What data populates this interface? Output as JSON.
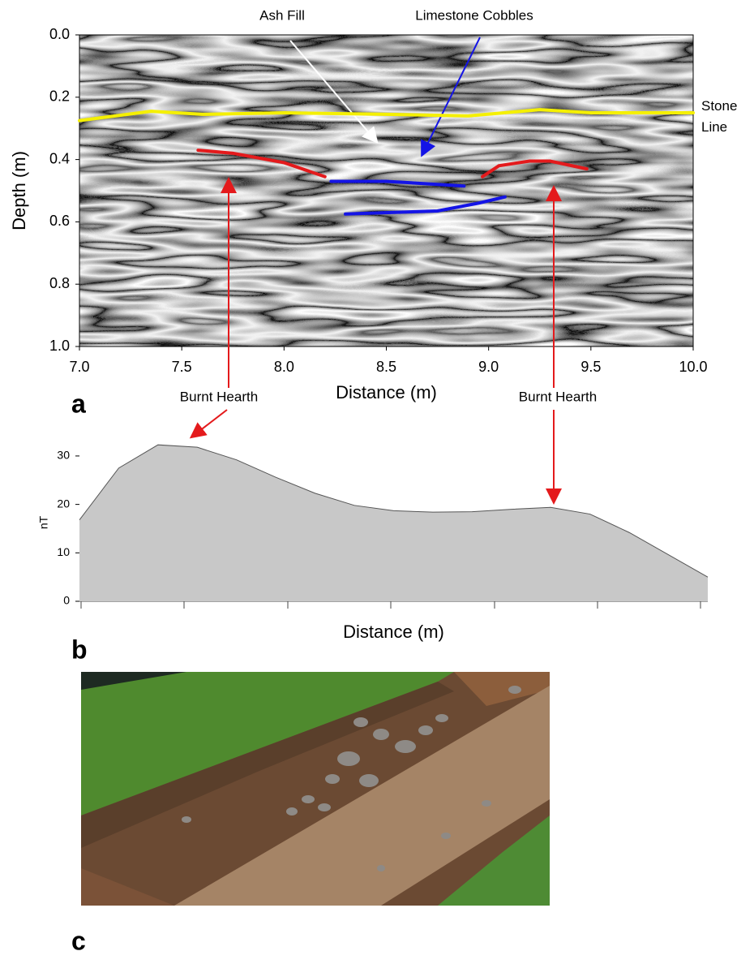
{
  "chart_data": [
    {
      "type": "line",
      "panel_label": "a",
      "xlabel": "Distance (m)",
      "ylabel": "Depth (m)",
      "xlim": [
        7,
        10
      ],
      "ylim": [
        0,
        1
      ],
      "y_inverted": true,
      "xticks": [
        {
          "value": 7,
          "label": "7.0"
        },
        {
          "value": 7.5,
          "label": "7.5"
        },
        {
          "value": 8,
          "label": "8.0"
        },
        {
          "value": 8.5,
          "label": "8.5"
        },
        {
          "value": 9,
          "label": "9.0"
        },
        {
          "value": 9.5,
          "label": "9.5"
        },
        {
          "value": 10,
          "label": "10.0"
        }
      ],
      "yticks": [
        {
          "value": 0,
          "label": "0.0"
        },
        0.2,
        0.4,
        0.6,
        0.8,
        {
          "value": 1,
          "label": "1.0"
        }
      ],
      "annotations": [
        "Ash Fill",
        "Limestone Cobbles",
        "Stone Line",
        "Burnt Hearth",
        "Burnt Hearth"
      ],
      "series": [
        {
          "color": "#f5f000",
          "x": [
            7.0,
            7.35,
            7.6,
            8.0,
            8.5,
            8.9,
            9.25,
            9.5,
            10.0
          ],
          "values": [
            0.275,
            0.245,
            0.255,
            0.25,
            0.255,
            0.26,
            0.24,
            0.25,
            0.25
          ]
        },
        {
          "color": "#e41a1c",
          "x": [
            7.58,
            7.75,
            8.0,
            8.2
          ],
          "values": [
            0.37,
            0.38,
            0.41,
            0.455
          ]
        },
        {
          "color": "#e41a1c",
          "x": [
            8.97,
            9.05,
            9.2,
            9.3,
            9.48
          ],
          "values": [
            0.455,
            0.42,
            0.405,
            0.405,
            0.43
          ]
        },
        {
          "color": "#1414e6",
          "x": [
            8.23,
            8.5,
            8.88
          ],
          "values": [
            0.47,
            0.47,
            0.485
          ]
        },
        {
          "color": "#1414e6",
          "x": [
            8.3,
            8.75,
            8.95,
            9.08
          ],
          "values": [
            0.575,
            0.565,
            0.54,
            0.52
          ]
        }
      ]
    },
    {
      "type": "area",
      "panel_label": "b",
      "xlabel": "Distance (m)",
      "ylabel": "nT",
      "color": "#c8c8c8",
      "ylim": [
        0,
        32.5
      ],
      "yticks": [
        0,
        10,
        20,
        30
      ],
      "categories": [
        null,
        null,
        null,
        null,
        null,
        null,
        null,
        null,
        null,
        null,
        null,
        null,
        null,
        null,
        null,
        null,
        null
      ],
      "values": [
        16.8,
        27.5,
        32.3,
        31.8,
        29.2,
        25.6,
        22.3,
        19.8,
        18.7,
        18.4,
        18.5,
        19.0,
        19.4,
        18.0,
        14.2,
        9.6,
        5.0
      ]
    }
  ],
  "photo": {
    "panel_label": "c"
  }
}
